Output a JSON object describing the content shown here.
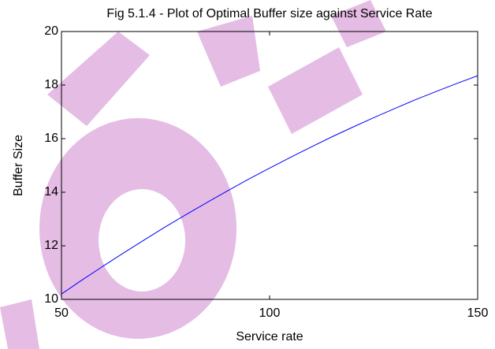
{
  "chart_data": {
    "type": "line",
    "title": "Fig 5.1.4 - Plot of Optimal Buffer size against Service Rate",
    "x_label": "Service rate",
    "y_label": "Buffer Size",
    "x": [
      50,
      55,
      60,
      65,
      70,
      75,
      80,
      85,
      90,
      95,
      100,
      105,
      110,
      115,
      120,
      125,
      130,
      135,
      140,
      145,
      150
    ],
    "values": [
      10.2,
      10.73,
      11.24,
      11.74,
      12.23,
      12.71,
      13.17,
      13.62,
      14.06,
      14.49,
      14.9,
      15.3,
      15.69,
      16.07,
      16.43,
      16.78,
      17.12,
      17.45,
      17.76,
      18.06,
      18.35
    ],
    "color": "#0000ff",
    "xlim": [
      50,
      150
    ],
    "xticks": [
      50,
      100,
      150
    ],
    "ylim": [
      10,
      20
    ],
    "yticks": [
      10,
      12,
      14,
      16,
      18,
      20
    ],
    "grid": false
  }
}
